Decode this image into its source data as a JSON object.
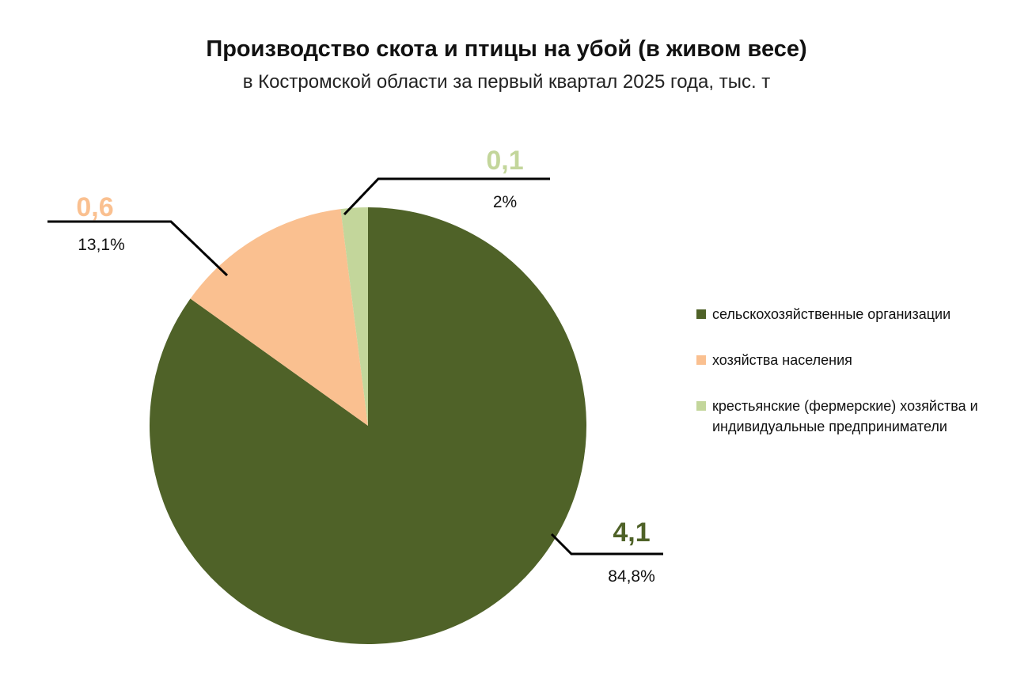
{
  "chart_data": {
    "type": "pie",
    "title": "Производство скота и птицы на убой (в живом весе)",
    "subtitle": "в Костромской области за первый квартал 2025 года, тыс. т",
    "legend_position": "right",
    "slices": [
      {
        "name": "сельскохозяйственные организации",
        "value": 4.1,
        "value_label": "4,1",
        "percent": 84.8,
        "percent_label": "84,8%",
        "color": "#4f6228"
      },
      {
        "name": "хозяйства населения",
        "value": 0.6,
        "value_label": "0,6",
        "percent": 13.1,
        "percent_label": "13,1%",
        "color": "#fac090"
      },
      {
        "name": "крестьянские (фермерские) хозяйства и индивидуальные предприниматели",
        "value": 0.1,
        "value_label": "0,1",
        "percent": 2,
        "percent_label": "2%",
        "color": "#c3d69b"
      }
    ]
  }
}
